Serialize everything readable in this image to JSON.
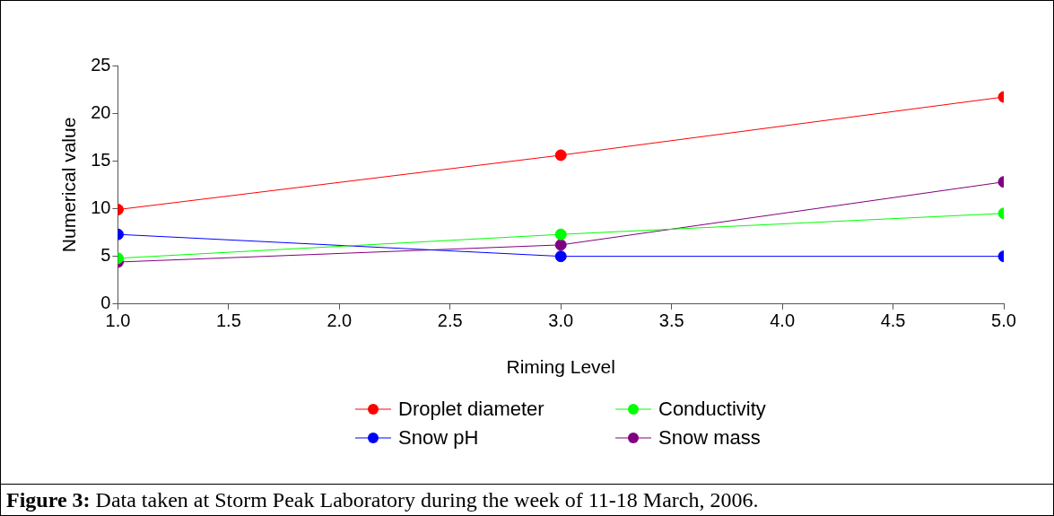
{
  "chart_data": {
    "type": "line",
    "xlabel": "Riming Level",
    "ylabel": "Numerical value",
    "x": [
      1,
      3,
      5
    ],
    "series": [
      {
        "name": "Droplet diameter",
        "color": "#ff0000",
        "values": [
          9.9,
          15.6,
          21.7
        ]
      },
      {
        "name": "Conductivity",
        "color": "#00ff00",
        "values": [
          4.8,
          7.3,
          9.5
        ]
      },
      {
        "name": "Snow pH",
        "color": "#0000ff",
        "values": [
          7.3,
          5.0,
          5.0
        ]
      },
      {
        "name": "Snow mass",
        "color": "#800080",
        "values": [
          4.4,
          6.2,
          12.8
        ]
      }
    ],
    "xlim": [
      1,
      5
    ],
    "xticks": [
      {
        "value": 1,
        "label": "1.0"
      },
      {
        "value": 1.5,
        "label": "1.5"
      },
      {
        "value": 2,
        "label": "2.0"
      },
      {
        "value": 2.5,
        "label": "2.5"
      },
      {
        "value": 3,
        "label": "3.0"
      },
      {
        "value": 3.5,
        "label": "3.5"
      },
      {
        "value": 4,
        "label": "4.0"
      },
      {
        "value": 4.5,
        "label": "4.5"
      },
      {
        "value": 5,
        "label": "5.0"
      }
    ],
    "ylim": [
      0,
      25
    ],
    "yticks": [
      0,
      5,
      10,
      15,
      20,
      25
    ],
    "grid": false,
    "legend": "bottom",
    "marker": "circle",
    "line_style": "solid",
    "annotations": [
      "Figure 3: Data taken at Storm Peak Laboratory during the week of 11-18 March, 2006."
    ]
  }
}
